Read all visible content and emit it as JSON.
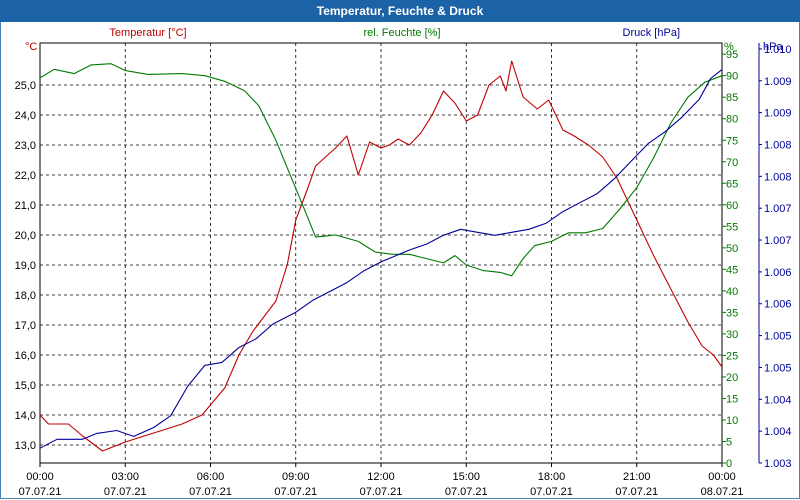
{
  "title": "Temperatur, Feuchte & Druck",
  "colors": {
    "temperature": "#c00000",
    "humidity": "#007a00",
    "pressure": "#000099",
    "title_bg": "#1c62a7",
    "grid": "#000000"
  },
  "chart_data": {
    "type": "line",
    "title": "Temperatur, Feuchte & Druck",
    "x_ticks": [
      {
        "time": "00:00",
        "date": "07.07.21"
      },
      {
        "time": "03:00",
        "date": "07.07.21"
      },
      {
        "time": "06:00",
        "date": "07.07.21"
      },
      {
        "time": "09:00",
        "date": "07.07.21"
      },
      {
        "time": "12:00",
        "date": "07.07.21"
      },
      {
        "time": "15:00",
        "date": "07.07.21"
      },
      {
        "time": "18:00",
        "date": "07.07.21"
      },
      {
        "time": "21:00",
        "date": "07.07.21"
      },
      {
        "time": "00:00",
        "date": "08.07.21"
      }
    ],
    "x_range_hours": [
      0,
      24
    ],
    "axes": {
      "temperature": {
        "label": "Temperatur [°C]",
        "unit": "°C",
        "range": [
          12.4,
          26.4
        ],
        "ticks": [
          "25,0",
          "24,0",
          "23,0",
          "22,0",
          "21,0",
          "20,0",
          "19,0",
          "18,0",
          "17,0",
          "16,0",
          "15,0",
          "14,0",
          "13,0"
        ]
      },
      "humidity": {
        "label": "rel. Feuchte [%]",
        "unit": "%",
        "range": [
          0,
          97.6
        ],
        "ticks": [
          "95",
          "90",
          "85",
          "80",
          "75",
          "70",
          "65",
          "60",
          "55",
          "50",
          "45",
          "40",
          "35",
          "30",
          "25",
          "20",
          "15",
          "10",
          "5",
          "0"
        ]
      },
      "pressure": {
        "label": "Druck [hPa]",
        "unit": "hPa",
        "range": [
          1003.0,
          1010.1
        ],
        "ticks": [
          "1.010",
          "1.009",
          "1.009",
          "1.008",
          "1.008",
          "1.007",
          "1.007",
          "1.006",
          "1.006",
          "1.005",
          "1.005",
          "1.004",
          "1.004",
          "1.003"
        ]
      }
    },
    "series": [
      {
        "name": "Temperatur [°C]",
        "points": [
          [
            0,
            14.0
          ],
          [
            0.3,
            13.7
          ],
          [
            1,
            13.7
          ],
          [
            1.5,
            13.3
          ],
          [
            2.2,
            12.8
          ],
          [
            3,
            13.1
          ],
          [
            4,
            13.4
          ],
          [
            5,
            13.7
          ],
          [
            5.7,
            14.0
          ],
          [
            6.5,
            14.9
          ],
          [
            7,
            16.0
          ],
          [
            7.5,
            16.8
          ],
          [
            8.3,
            17.8
          ],
          [
            8.7,
            19.0
          ],
          [
            9,
            20.5
          ],
          [
            9.4,
            21.5
          ],
          [
            9.7,
            22.3
          ],
          [
            10.4,
            22.9
          ],
          [
            10.8,
            23.3
          ],
          [
            11.2,
            22.0
          ],
          [
            11.6,
            23.1
          ],
          [
            12,
            22.9
          ],
          [
            12.3,
            23.0
          ],
          [
            12.6,
            23.2
          ],
          [
            13,
            23.0
          ],
          [
            13.4,
            23.4
          ],
          [
            13.8,
            24.0
          ],
          [
            14.2,
            24.8
          ],
          [
            14.6,
            24.4
          ],
          [
            15,
            23.8
          ],
          [
            15.4,
            24.0
          ],
          [
            15.8,
            25.0
          ],
          [
            16.2,
            25.3
          ],
          [
            16.4,
            24.8
          ],
          [
            16.6,
            25.8
          ],
          [
            17,
            24.6
          ],
          [
            17.5,
            24.2
          ],
          [
            17.9,
            24.5
          ],
          [
            18.4,
            23.5
          ],
          [
            18.8,
            23.3
          ],
          [
            19.3,
            23.0
          ],
          [
            19.8,
            22.6
          ],
          [
            20.3,
            21.9
          ],
          [
            21,
            20.5
          ],
          [
            21.6,
            19.3
          ],
          [
            22.2,
            18.2
          ],
          [
            22.8,
            17.1
          ],
          [
            23.3,
            16.3
          ],
          [
            23.7,
            16.0
          ],
          [
            24,
            15.6
          ]
        ]
      },
      {
        "name": "rel. Feuchte [%]",
        "points": [
          [
            0,
            89.5
          ],
          [
            0.5,
            91.5
          ],
          [
            1.2,
            90.5
          ],
          [
            1.8,
            92.5
          ],
          [
            2.5,
            92.8
          ],
          [
            3,
            91.2
          ],
          [
            3.8,
            90.3
          ],
          [
            5,
            90.5
          ],
          [
            5.8,
            90.0
          ],
          [
            6.5,
            88.7
          ],
          [
            7.2,
            86.5
          ],
          [
            7.7,
            83.0
          ],
          [
            8.3,
            75.0
          ],
          [
            8.8,
            67.0
          ],
          [
            9.3,
            59.0
          ],
          [
            9.7,
            52.5
          ],
          [
            10.4,
            53.0
          ],
          [
            11.2,
            51.5
          ],
          [
            11.8,
            49.0
          ],
          [
            12.4,
            48.5
          ],
          [
            13,
            48.5
          ],
          [
            13.6,
            47.5
          ],
          [
            14.2,
            46.5
          ],
          [
            14.6,
            48.2
          ],
          [
            15,
            46.0
          ],
          [
            15.6,
            44.7
          ],
          [
            16.2,
            44.3
          ],
          [
            16.6,
            43.5
          ],
          [
            17,
            47.5
          ],
          [
            17.4,
            50.5
          ],
          [
            18,
            51.5
          ],
          [
            18.6,
            53.5
          ],
          [
            19.2,
            53.5
          ],
          [
            19.8,
            54.5
          ],
          [
            20.4,
            59.0
          ],
          [
            21,
            64.0
          ],
          [
            21.6,
            71.0
          ],
          [
            22.2,
            79.0
          ],
          [
            22.8,
            85.0
          ],
          [
            23.4,
            88.5
          ],
          [
            24,
            90.0
          ]
        ]
      },
      {
        "name": "Druck [hPa]",
        "points": [
          [
            0,
            1003.25
          ],
          [
            0.6,
            1003.4
          ],
          [
            1.5,
            1003.4
          ],
          [
            2,
            1003.5
          ],
          [
            2.7,
            1003.55
          ],
          [
            3.3,
            1003.45
          ],
          [
            4,
            1003.6
          ],
          [
            4.6,
            1003.8
          ],
          [
            5.2,
            1004.3
          ],
          [
            5.8,
            1004.65
          ],
          [
            6.4,
            1004.7
          ],
          [
            7,
            1004.95
          ],
          [
            7.6,
            1005.1
          ],
          [
            8.2,
            1005.35
          ],
          [
            9,
            1005.55
          ],
          [
            9.6,
            1005.75
          ],
          [
            10.2,
            1005.9
          ],
          [
            10.8,
            1006.05
          ],
          [
            11.4,
            1006.25
          ],
          [
            12,
            1006.4
          ],
          [
            12.5,
            1006.5
          ],
          [
            13,
            1006.6
          ],
          [
            13.6,
            1006.7
          ],
          [
            14.2,
            1006.85
          ],
          [
            14.8,
            1006.95
          ],
          [
            15.4,
            1006.9
          ],
          [
            16,
            1006.85
          ],
          [
            16.6,
            1006.9
          ],
          [
            17.2,
            1006.95
          ],
          [
            17.8,
            1007.05
          ],
          [
            18.4,
            1007.25
          ],
          [
            19,
            1007.4
          ],
          [
            19.6,
            1007.55
          ],
          [
            20.2,
            1007.8
          ],
          [
            20.8,
            1008.1
          ],
          [
            21.4,
            1008.4
          ],
          [
            22,
            1008.6
          ],
          [
            22.6,
            1008.85
          ],
          [
            23.2,
            1009.15
          ],
          [
            23.6,
            1009.5
          ],
          [
            24,
            1009.65
          ]
        ]
      }
    ]
  }
}
